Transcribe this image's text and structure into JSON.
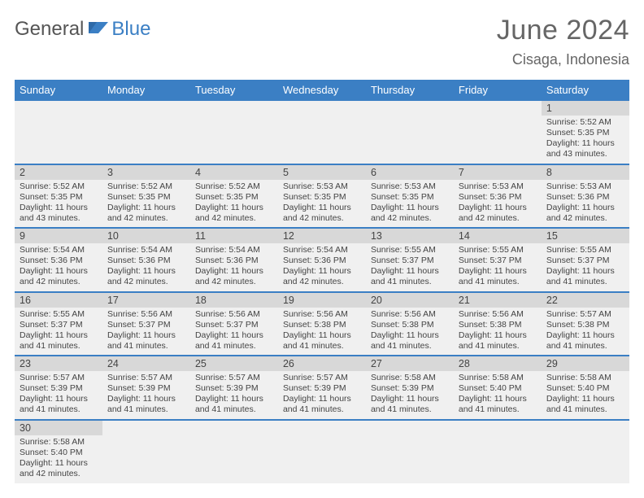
{
  "logo": {
    "part1": "General",
    "part2": "Blue"
  },
  "title": "June 2024",
  "location": "Cisaga, Indonesia",
  "weekdays": [
    "Sunday",
    "Monday",
    "Tuesday",
    "Wednesday",
    "Thursday",
    "Friday",
    "Saturday"
  ],
  "colors": {
    "accent": "#3b7fc4",
    "cellbg": "#f0f0f0",
    "daybg": "#d8d8d8"
  },
  "rows": [
    [
      null,
      null,
      null,
      null,
      null,
      null,
      {
        "n": "1",
        "r": "5:52 AM",
        "s": "5:35 PM",
        "d": "11 hours and 43 minutes."
      }
    ],
    [
      {
        "n": "2",
        "r": "5:52 AM",
        "s": "5:35 PM",
        "d": "11 hours and 43 minutes."
      },
      {
        "n": "3",
        "r": "5:52 AM",
        "s": "5:35 PM",
        "d": "11 hours and 42 minutes."
      },
      {
        "n": "4",
        "r": "5:52 AM",
        "s": "5:35 PM",
        "d": "11 hours and 42 minutes."
      },
      {
        "n": "5",
        "r": "5:53 AM",
        "s": "5:35 PM",
        "d": "11 hours and 42 minutes."
      },
      {
        "n": "6",
        "r": "5:53 AM",
        "s": "5:35 PM",
        "d": "11 hours and 42 minutes."
      },
      {
        "n": "7",
        "r": "5:53 AM",
        "s": "5:36 PM",
        "d": "11 hours and 42 minutes."
      },
      {
        "n": "8",
        "r": "5:53 AM",
        "s": "5:36 PM",
        "d": "11 hours and 42 minutes."
      }
    ],
    [
      {
        "n": "9",
        "r": "5:54 AM",
        "s": "5:36 PM",
        "d": "11 hours and 42 minutes."
      },
      {
        "n": "10",
        "r": "5:54 AM",
        "s": "5:36 PM",
        "d": "11 hours and 42 minutes."
      },
      {
        "n": "11",
        "r": "5:54 AM",
        "s": "5:36 PM",
        "d": "11 hours and 42 minutes."
      },
      {
        "n": "12",
        "r": "5:54 AM",
        "s": "5:36 PM",
        "d": "11 hours and 42 minutes."
      },
      {
        "n": "13",
        "r": "5:55 AM",
        "s": "5:37 PM",
        "d": "11 hours and 41 minutes."
      },
      {
        "n": "14",
        "r": "5:55 AM",
        "s": "5:37 PM",
        "d": "11 hours and 41 minutes."
      },
      {
        "n": "15",
        "r": "5:55 AM",
        "s": "5:37 PM",
        "d": "11 hours and 41 minutes."
      }
    ],
    [
      {
        "n": "16",
        "r": "5:55 AM",
        "s": "5:37 PM",
        "d": "11 hours and 41 minutes."
      },
      {
        "n": "17",
        "r": "5:56 AM",
        "s": "5:37 PM",
        "d": "11 hours and 41 minutes."
      },
      {
        "n": "18",
        "r": "5:56 AM",
        "s": "5:37 PM",
        "d": "11 hours and 41 minutes."
      },
      {
        "n": "19",
        "r": "5:56 AM",
        "s": "5:38 PM",
        "d": "11 hours and 41 minutes."
      },
      {
        "n": "20",
        "r": "5:56 AM",
        "s": "5:38 PM",
        "d": "11 hours and 41 minutes."
      },
      {
        "n": "21",
        "r": "5:56 AM",
        "s": "5:38 PM",
        "d": "11 hours and 41 minutes."
      },
      {
        "n": "22",
        "r": "5:57 AM",
        "s": "5:38 PM",
        "d": "11 hours and 41 minutes."
      }
    ],
    [
      {
        "n": "23",
        "r": "5:57 AM",
        "s": "5:39 PM",
        "d": "11 hours and 41 minutes."
      },
      {
        "n": "24",
        "r": "5:57 AM",
        "s": "5:39 PM",
        "d": "11 hours and 41 minutes."
      },
      {
        "n": "25",
        "r": "5:57 AM",
        "s": "5:39 PM",
        "d": "11 hours and 41 minutes."
      },
      {
        "n": "26",
        "r": "5:57 AM",
        "s": "5:39 PM",
        "d": "11 hours and 41 minutes."
      },
      {
        "n": "27",
        "r": "5:58 AM",
        "s": "5:39 PM",
        "d": "11 hours and 41 minutes."
      },
      {
        "n": "28",
        "r": "5:58 AM",
        "s": "5:40 PM",
        "d": "11 hours and 41 minutes."
      },
      {
        "n": "29",
        "r": "5:58 AM",
        "s": "5:40 PM",
        "d": "11 hours and 41 minutes."
      }
    ],
    [
      {
        "n": "30",
        "r": "5:58 AM",
        "s": "5:40 PM",
        "d": "11 hours and 42 minutes."
      },
      null,
      null,
      null,
      null,
      null,
      null
    ]
  ],
  "labels": {
    "sunrise": "Sunrise: ",
    "sunset": "Sunset: ",
    "daylight": "Daylight: "
  }
}
